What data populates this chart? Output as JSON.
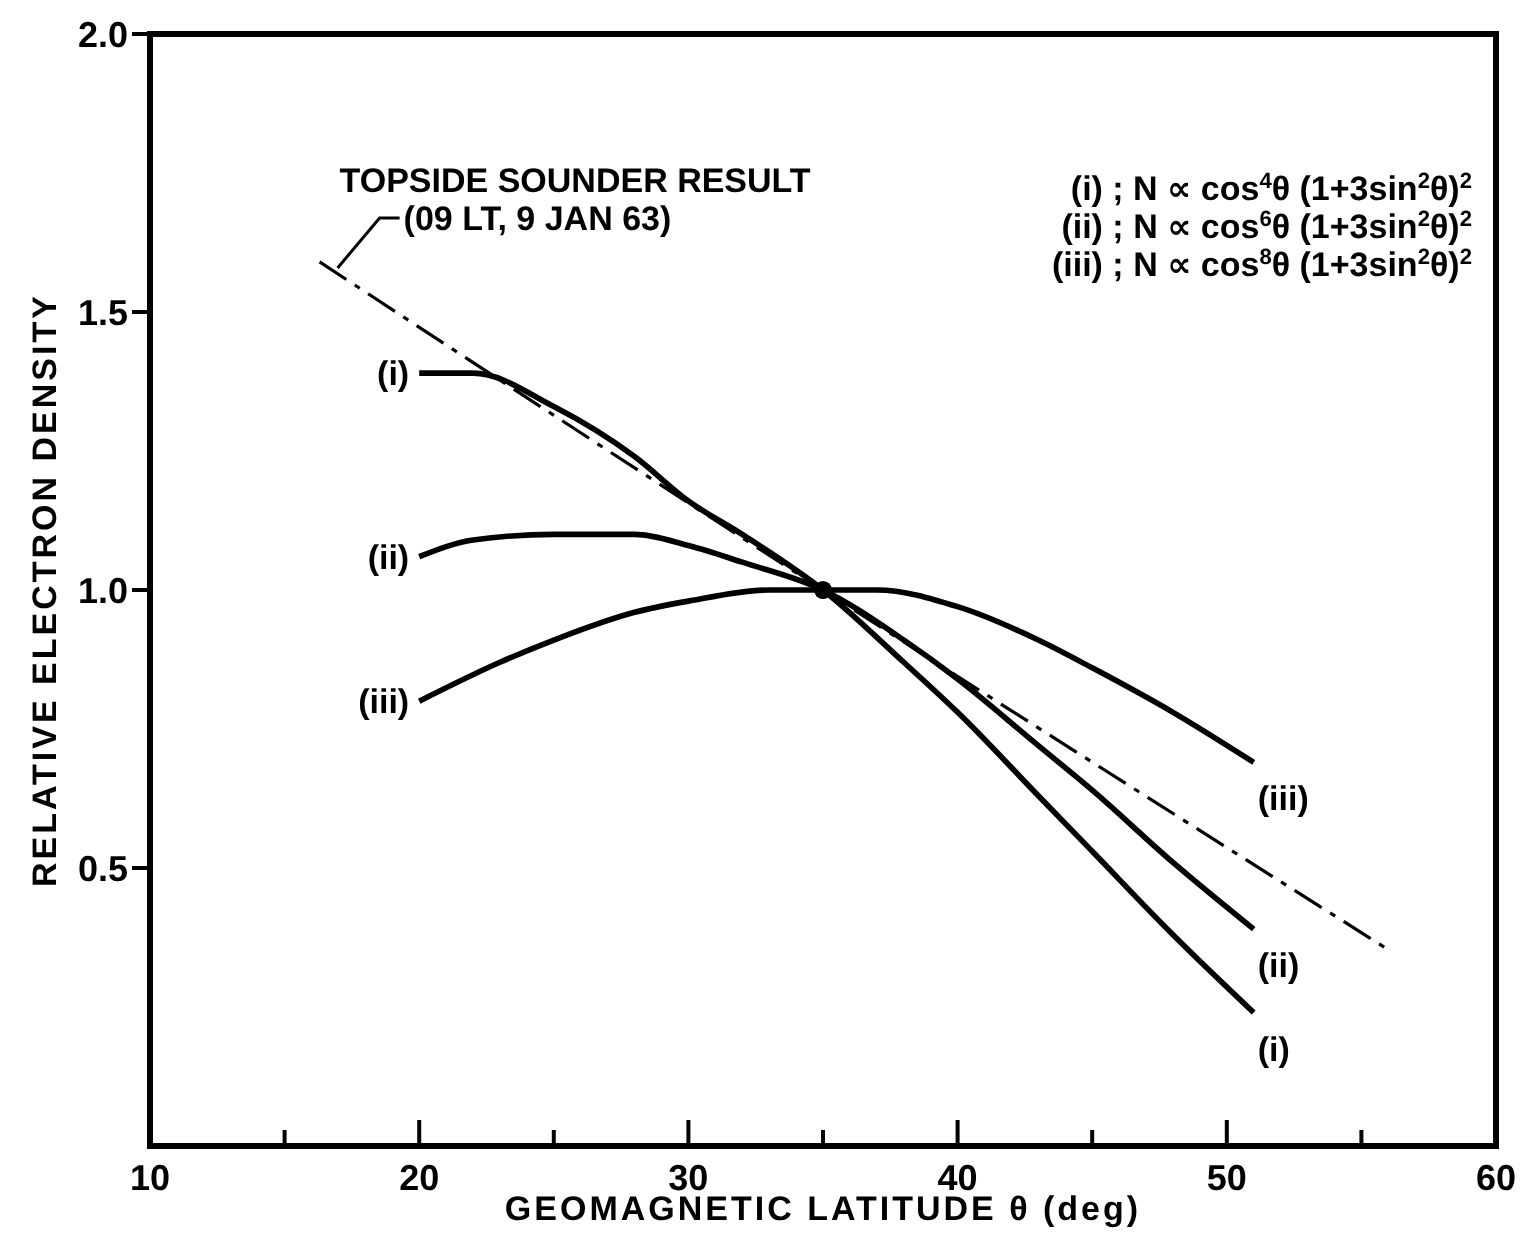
{
  "chart_data": {
    "type": "line",
    "xlabel": "GEOMAGNETIC LATITUDE θ (deg)",
    "ylabel": "RELATIVE ELECTRON DENSITY",
    "xlim": [
      10,
      60
    ],
    "xticks": [
      10,
      {
        "value": 15,
        "label": null
      },
      20,
      {
        "value": 25,
        "label": null
      },
      30,
      {
        "value": 35,
        "label": null
      },
      40,
      {
        "value": 45,
        "label": null
      },
      50,
      {
        "value": 55,
        "label": null
      },
      60
    ],
    "ylim": [
      0,
      2
    ],
    "yticks": [
      {
        "value": 0.5,
        "label": "0.5"
      },
      {
        "value": 1,
        "label": "1.0"
      },
      {
        "value": 1.5,
        "label": "1.5"
      },
      {
        "value": 2,
        "label": "2.0"
      }
    ],
    "grid": false,
    "legend": false,
    "series": [
      {
        "name": "(i)",
        "color": "#000000",
        "x": [
          20,
          22,
          25,
          28,
          30,
          32,
          35,
          38,
          40,
          43,
          45,
          48,
          51
        ],
        "values": [
          1.39,
          1.39,
          1.33,
          1.24,
          1.16,
          1.1,
          1.0,
          0.87,
          0.78,
          0.63,
          0.53,
          0.38,
          0.24
        ]
      },
      {
        "name": "(ii)",
        "color": "#000000",
        "x": [
          20,
          22,
          25,
          28,
          30,
          32,
          35,
          38,
          40,
          43,
          45,
          48,
          51
        ],
        "values": [
          1.06,
          1.09,
          1.1,
          1.1,
          1.08,
          1.05,
          1.0,
          0.91,
          0.84,
          0.72,
          0.64,
          0.51,
          0.39
        ]
      },
      {
        "name": "(iii)",
        "color": "#000000",
        "x": [
          20,
          23,
          25,
          28,
          30,
          33,
          35,
          37,
          40,
          43,
          45,
          48,
          51
        ],
        "values": [
          0.8,
          0.87,
          0.91,
          0.96,
          0.98,
          1.0,
          1.0,
          1.0,
          0.97,
          0.91,
          0.86,
          0.78,
          0.69
        ]
      },
      {
        "color": "#000000",
        "line_style": "dashed",
        "x": [
          16.3,
          35,
          56.1
        ],
        "values": [
          1.59,
          1.0,
          0.35
        ]
      },
      {
        "type": "scatter",
        "color": "#000000",
        "marker": "circle",
        "x": [
          35
        ],
        "values": [
          1.0
        ]
      }
    ],
    "annotations": [
      {
        "text": "TOPSIDE SOUNDER RESULT\n(09 LT, 9 JAN 63)",
        "x": 16.3,
        "y": 1.59
      },
      "(i) ; N ∝ cos$^{4}$θ (1+3sin$^{2}$θ)$^{2}$",
      "(ii) ; N ∝ cos$^{6}$θ (1+3sin$^{2}$θ)$^{2}$",
      "(iii) ; N ∝ cos$^{8}$θ (1+3sin$^{2}$θ)$^{2}$"
    ]
  }
}
